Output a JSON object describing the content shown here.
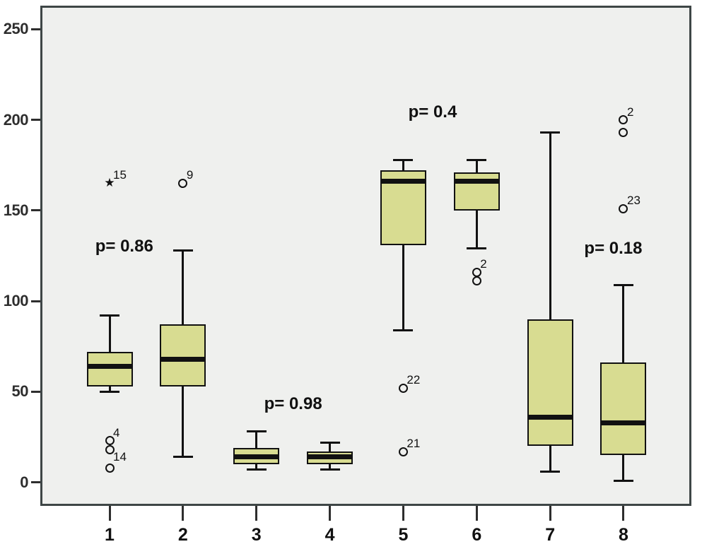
{
  "figure_colors": {
    "page-bg": "#ffffff",
    "plot-bg": "#eff0ee",
    "frame": "#3e4646",
    "axis-ink": "#2e2e2e",
    "ink": "#111111",
    "box-fill": "#d8dc91"
  },
  "chart_data": {
    "type": "boxplot",
    "title": "",
    "xlabel": "",
    "ylabel": "",
    "grid": false,
    "legend": "none",
    "ylim": [
      -13,
      263
    ],
    "yticks": [
      0,
      50,
      100,
      150,
      200,
      250
    ],
    "categories": [
      "1",
      "2",
      "3",
      "4",
      "5",
      "6",
      "7",
      "8"
    ],
    "boxes": [
      {
        "category": "1",
        "whisker_low": 50,
        "q1": 53,
        "median": 64,
        "q3": 72,
        "whisker_high": 92,
        "outliers": [
          {
            "value": 165,
            "symbol": "star",
            "label": "15",
            "label_pos": "tr"
          },
          {
            "value": 23,
            "symbol": "circle",
            "label": "4",
            "label_pos": "tr"
          },
          {
            "value": 18,
            "symbol": "circle",
            "label": "14",
            "label_pos": "br"
          },
          {
            "value": 8,
            "symbol": "circle",
            "label": "",
            "label_pos": "tr"
          }
        ]
      },
      {
        "category": "2",
        "whisker_low": 14,
        "q1": 53,
        "median": 68,
        "q3": 87,
        "whisker_high": 128,
        "outliers": [
          {
            "value": 165,
            "symbol": "circle",
            "label": "9",
            "label_pos": "tr"
          }
        ]
      },
      {
        "category": "3",
        "whisker_low": 7,
        "q1": 10,
        "median": 14,
        "q3": 19,
        "whisker_high": 28,
        "outliers": []
      },
      {
        "category": "4",
        "whisker_low": 7,
        "q1": 10,
        "median": 14,
        "q3": 17,
        "whisker_high": 22,
        "outliers": []
      },
      {
        "category": "5",
        "whisker_low": 84,
        "q1": 131,
        "median": 166,
        "q3": 172,
        "whisker_high": 178,
        "outliers": [
          {
            "value": 52,
            "symbol": "circle",
            "label": "22",
            "label_pos": "tr"
          },
          {
            "value": 17,
            "symbol": "circle",
            "label": "21",
            "label_pos": "tr"
          }
        ]
      },
      {
        "category": "6",
        "whisker_low": 129,
        "q1": 150,
        "median": 166,
        "q3": 171,
        "whisker_high": 178,
        "outliers": [
          {
            "value": 116,
            "symbol": "circle",
            "label": "2",
            "label_pos": "tr"
          },
          {
            "value": 111,
            "symbol": "circle",
            "label": "",
            "label_pos": "tr"
          }
        ]
      },
      {
        "category": "7",
        "whisker_low": 6,
        "q1": 20,
        "median": 36,
        "q3": 90,
        "whisker_high": 193,
        "outliers": []
      },
      {
        "category": "8",
        "whisker_low": 1,
        "q1": 15,
        "median": 33,
        "q3": 66,
        "whisker_high": 109,
        "outliers": [
          {
            "value": 200,
            "symbol": "circle",
            "label": "2",
            "label_pos": "tr"
          },
          {
            "value": 193,
            "symbol": "circle",
            "label": "",
            "label_pos": "tr"
          },
          {
            "value": 151,
            "symbol": "circle",
            "label": "23",
            "label_pos": "tr"
          }
        ]
      }
    ],
    "annotations": [
      {
        "text": "p= 0.86",
        "x_group": 1.2,
        "y_value": 130
      },
      {
        "text": "p= 0.98",
        "x_group": 3.5,
        "y_value": 43
      },
      {
        "text": "p= 0.4",
        "x_group": 5.4,
        "y_value": 204
      },
      {
        "text": "p= 0.18",
        "x_group": 7.86,
        "y_value": 129
      }
    ]
  }
}
